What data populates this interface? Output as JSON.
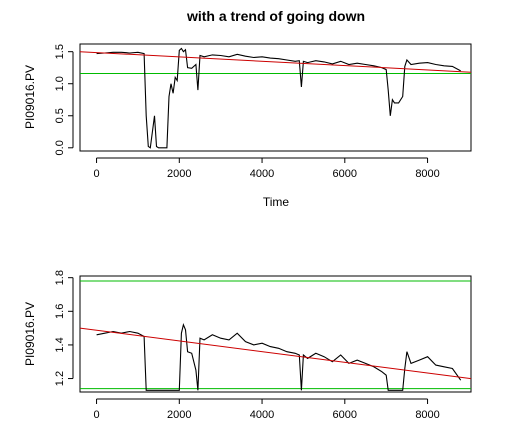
{
  "chart_data": [
    {
      "type": "line",
      "title": "with a trend of going down",
      "xlabel": "Time",
      "ylabel": "PI09016.PV",
      "xlim": [
        -400,
        9050
      ],
      "ylim": [
        -0.05,
        1.62
      ],
      "xticks": [
        0,
        2000,
        4000,
        6000,
        8000
      ],
      "xtick_labels": [
        "0",
        "2000",
        "4000",
        "6000",
        "8000"
      ],
      "yticks": [
        0.0,
        0.5,
        1.0,
        1.5
      ],
      "ytick_labels": [
        "0.0",
        "0.5",
        "1.0",
        "1.5"
      ],
      "grid": false,
      "series": [
        {
          "color": "#000000",
          "x": [
            0,
            200,
            400,
            600,
            800,
            1000,
            1150,
            1200,
            1250,
            1300,
            1350,
            1400,
            1450,
            1500,
            1600,
            1700,
            1750,
            1800,
            1850,
            1900,
            1950,
            2000,
            2050,
            2100,
            2150,
            2200,
            2300,
            2400,
            2450,
            2500,
            2600,
            2800,
            3000,
            3200,
            3400,
            3600,
            3800,
            4000,
            4200,
            4400,
            4600,
            4800,
            4900,
            4950,
            5000,
            5100,
            5300,
            5500,
            5700,
            5900,
            6100,
            6300,
            6500,
            6700,
            6900,
            7000,
            7050,
            7100,
            7150,
            7200,
            7300,
            7400,
            7450,
            7500,
            7600,
            7800,
            8000,
            8200,
            8400,
            8600,
            8800
          ],
          "y": [
            1.47,
            1.48,
            1.49,
            1.49,
            1.48,
            1.49,
            1.47,
            0.5,
            0.02,
            0.0,
            0.25,
            0.5,
            0.02,
            0.0,
            0.0,
            0.0,
            0.8,
            1.0,
            0.85,
            1.1,
            1.05,
            1.52,
            1.55,
            1.5,
            1.53,
            1.25,
            1.24,
            1.3,
            0.9,
            1.44,
            1.42,
            1.45,
            1.44,
            1.42,
            1.46,
            1.43,
            1.41,
            1.42,
            1.4,
            1.39,
            1.37,
            1.35,
            1.36,
            0.95,
            1.35,
            1.33,
            1.36,
            1.34,
            1.31,
            1.35,
            1.3,
            1.32,
            1.3,
            1.28,
            1.25,
            1.22,
            0.9,
            0.5,
            0.75,
            0.7,
            0.7,
            0.8,
            1.27,
            1.37,
            1.3,
            1.32,
            1.33,
            1.3,
            1.28,
            1.27,
            1.2
          ]
        },
        {
          "color": "#cc0000",
          "x": [
            -400,
            9050
          ],
          "y": [
            1.5,
            1.18
          ]
        }
      ],
      "hlines": [
        {
          "y": 1.16,
          "color": "#00bb00"
        }
      ]
    },
    {
      "type": "line",
      "title": "",
      "xlabel": "",
      "ylabel": "PI09016.PV",
      "xlim": [
        -400,
        9050
      ],
      "ylim": [
        1.12,
        1.81
      ],
      "xticks": [
        0,
        2000,
        4000,
        6000,
        8000
      ],
      "xtick_labels": [
        "0",
        "2000",
        "4000",
        "6000",
        "8000"
      ],
      "yticks": [
        1.2,
        1.4,
        1.6,
        1.8
      ],
      "ytick_labels": [
        "1.2",
        "1.4",
        "1.6",
        "1.8"
      ],
      "grid": false,
      "series": [
        {
          "color": "#000000",
          "x": [
            0,
            200,
            400,
            600,
            800,
            1000,
            1150,
            1200,
            1250,
            2000,
            2050,
            2100,
            2150,
            2200,
            2300,
            2400,
            2450,
            2500,
            2600,
            2800,
            3000,
            3200,
            3400,
            3600,
            3800,
            4000,
            4200,
            4400,
            4600,
            4800,
            4900,
            4950,
            5000,
            5100,
            5300,
            5500,
            5700,
            5900,
            6100,
            6300,
            6500,
            6700,
            6900,
            7000,
            7050,
            7400,
            7450,
            7500,
            7600,
            7800,
            8000,
            8200,
            8400,
            8600,
            8800
          ],
          "y": [
            1.46,
            1.47,
            1.48,
            1.47,
            1.48,
            1.47,
            1.45,
            1.13,
            1.13,
            1.13,
            1.47,
            1.52,
            1.49,
            1.36,
            1.35,
            1.25,
            1.13,
            1.44,
            1.43,
            1.46,
            1.44,
            1.43,
            1.47,
            1.42,
            1.4,
            1.41,
            1.39,
            1.38,
            1.36,
            1.35,
            1.34,
            1.13,
            1.34,
            1.32,
            1.35,
            1.33,
            1.3,
            1.34,
            1.29,
            1.31,
            1.29,
            1.27,
            1.24,
            1.22,
            1.13,
            1.13,
            1.26,
            1.36,
            1.29,
            1.31,
            1.33,
            1.28,
            1.27,
            1.26,
            1.19
          ]
        },
        {
          "color": "#cc0000",
          "x": [
            -400,
            9050
          ],
          "y": [
            1.5,
            1.2
          ]
        }
      ],
      "hlines": [
        {
          "y": 1.78,
          "color": "#00bb00"
        },
        {
          "y": 1.14,
          "color": "#00bb00"
        }
      ]
    }
  ]
}
